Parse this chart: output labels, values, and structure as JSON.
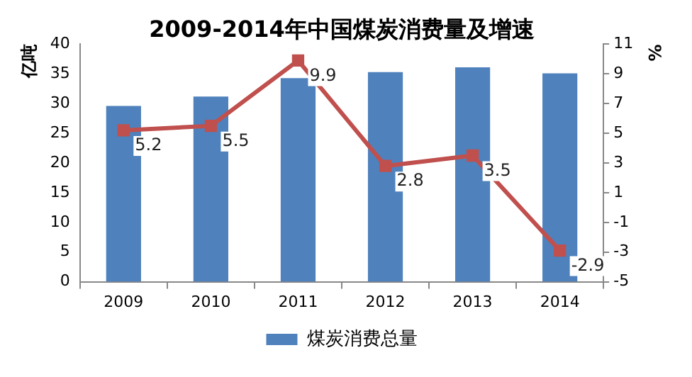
{
  "chart_data": {
    "type": "bar",
    "title": "2009-2014年中国煤炭消费量及增速",
    "ylabel": "亿吨",
    "y2label": "%",
    "categories": [
      "2009",
      "2010",
      "2011",
      "2012",
      "2013",
      "2014"
    ],
    "series": [
      {
        "name": "煤炭消费总量",
        "color": "#4f81bd",
        "values": [
          29.6,
          31.2,
          34.3,
          35.3,
          36.1,
          35.1
        ]
      },
      {
        "type": "line",
        "axis": "y2",
        "color": "#c0504d",
        "marker": "square",
        "data_labels": true,
        "values": [
          5.2,
          5.5,
          9.9,
          2.8,
          3.5,
          -2.9
        ]
      }
    ],
    "ylim": [
      0,
      40
    ],
    "yticks": [
      0,
      5,
      10,
      15,
      20,
      25,
      30,
      35,
      40
    ],
    "y2lim": [
      -5,
      11
    ],
    "y2ticks": [
      -5,
      -3,
      -1,
      1,
      3,
      5,
      7,
      9,
      11
    ],
    "grid": false,
    "legend": "bottom"
  }
}
